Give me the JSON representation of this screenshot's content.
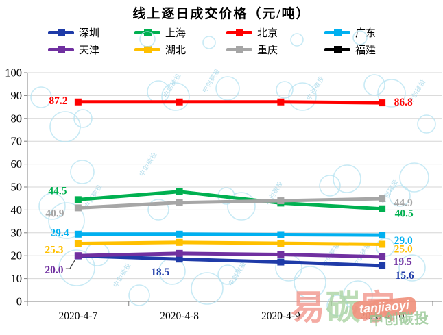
{
  "title": "线上逐日成交价格（元/吨）",
  "chart_data": {
    "type": "line",
    "title": "线上逐日成交价格（元/吨）",
    "categories": [
      "2020-4-7",
      "2020-4-8",
      "2020-4-9",
      "2020-4-10"
    ],
    "ylim": [
      0,
      100
    ],
    "ytick_step": 10,
    "grid": true,
    "legend_position": "top",
    "series": [
      {
        "id": "shenzhen",
        "name": "深圳",
        "color": "#1F3BA8",
        "values": [
          19.9,
          18.5,
          17.2,
          15.6
        ],
        "point_labels": [
          {
            "index": 1,
            "text": "18.5",
            "dx": -28,
            "dy": 19
          },
          {
            "index": 3,
            "text": "15.6",
            "dx": 33,
            "dy": 14
          }
        ]
      },
      {
        "id": "shanghai",
        "name": "上海",
        "color": "#00B050",
        "values": [
          44.5,
          48.0,
          43.0,
          40.5
        ],
        "point_labels": [
          {
            "index": 0,
            "text": "44.5",
            "dx": -30,
            "dy": -13
          },
          {
            "index": 3,
            "text": "40.5",
            "dx": 32,
            "dy": 7
          }
        ]
      },
      {
        "id": "beijing",
        "name": "北京",
        "color": "#FF0000",
        "values": [
          87.2,
          87.2,
          87.2,
          86.8
        ],
        "point_labels": [
          {
            "index": 0,
            "text": "87.2",
            "dx": -29,
            "dy": -2
          },
          {
            "index": 3,
            "text": "86.8",
            "dx": 31,
            "dy": -1
          }
        ]
      },
      {
        "id": "guangdong",
        "name": "广东",
        "color": "#00B0F0",
        "values": [
          29.4,
          29.4,
          29.2,
          29.0
        ],
        "point_labels": [
          {
            "index": 0,
            "text": "29.4",
            "dx": -27,
            "dy": -2
          },
          {
            "index": 3,
            "text": "29.0",
            "dx": 31,
            "dy": 8
          }
        ]
      },
      {
        "id": "tianjin",
        "name": "天津",
        "color": "#7030A0",
        "values": [
          20.0,
          21.0,
          20.5,
          19.5
        ],
        "point_labels": [
          {
            "index": 0,
            "text": "20.0",
            "dx": -35,
            "dy": 21,
            "leader": true
          },
          {
            "index": 3,
            "text": "19.5",
            "dx": 30,
            "dy": 7
          }
        ]
      },
      {
        "id": "hubei",
        "name": "湖北",
        "color": "#FFC000",
        "values": [
          25.3,
          25.8,
          25.4,
          25.0
        ],
        "point_labels": [
          {
            "index": 0,
            "text": "25.3",
            "dx": -35,
            "dy": 9
          },
          {
            "index": 3,
            "text": "25.0",
            "dx": 31,
            "dy": 7
          }
        ]
      },
      {
        "id": "chongqing",
        "name": "重庆",
        "color": "#A6A6A6",
        "values": [
          40.9,
          43.2,
          44.0,
          44.9
        ],
        "point_labels": [
          {
            "index": 0,
            "text": "40.9",
            "dx": -34,
            "dy": 8
          },
          {
            "index": 3,
            "text": "44.9",
            "dx": 31,
            "dy": 6
          }
        ]
      },
      {
        "id": "fujian",
        "name": "福建",
        "color": "#000000",
        "values": [],
        "point_labels": []
      }
    ]
  },
  "watermark": {
    "brand_chars": [
      {
        "char": "易",
        "color": "#F2948A"
      },
      {
        "char": "碳",
        "color": "#A9D3A1"
      },
      {
        "char": "家",
        "color": "#F2948A"
      }
    ],
    "badge": "tanjiaoyi",
    "badge_bg": "#F0927D",
    "badge_text_color": "#FFFFFF",
    "stamp": "中创碳投",
    "stamp_color": "#95C693",
    "bubble_text": "中创碳投",
    "bubble_color": "#B5E3F2"
  }
}
